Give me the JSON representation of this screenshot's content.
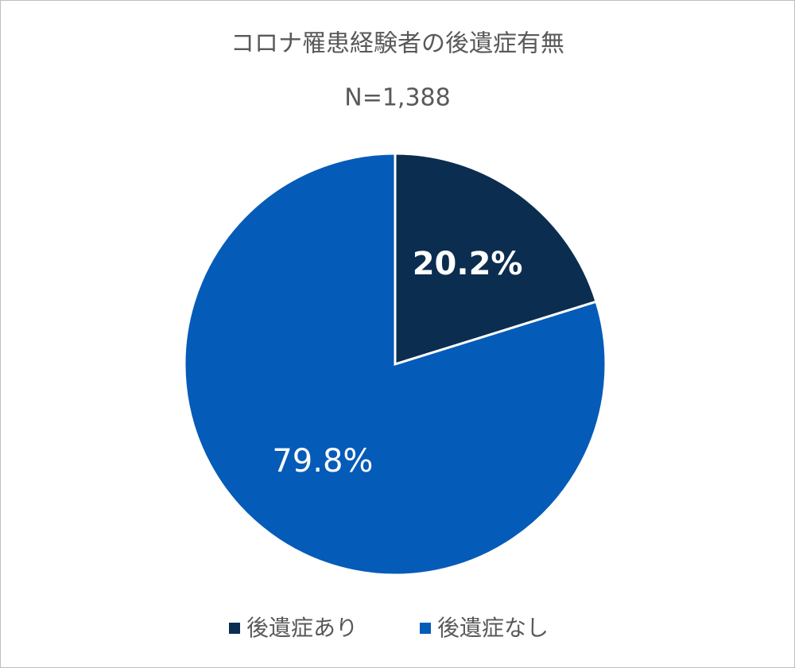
{
  "chart_data": {
    "type": "pie",
    "title": "コロナ罹患経験者の後遺症有無",
    "subtitle": "N=1,388",
    "categories": [
      "後遺症あり",
      "後遺症なし"
    ],
    "values": [
      20.2,
      79.8
    ],
    "value_labels": [
      "20.2%",
      "79.8%"
    ],
    "colors": [
      "#0b2d4f",
      "#055bb8"
    ],
    "legend": "bottom"
  }
}
